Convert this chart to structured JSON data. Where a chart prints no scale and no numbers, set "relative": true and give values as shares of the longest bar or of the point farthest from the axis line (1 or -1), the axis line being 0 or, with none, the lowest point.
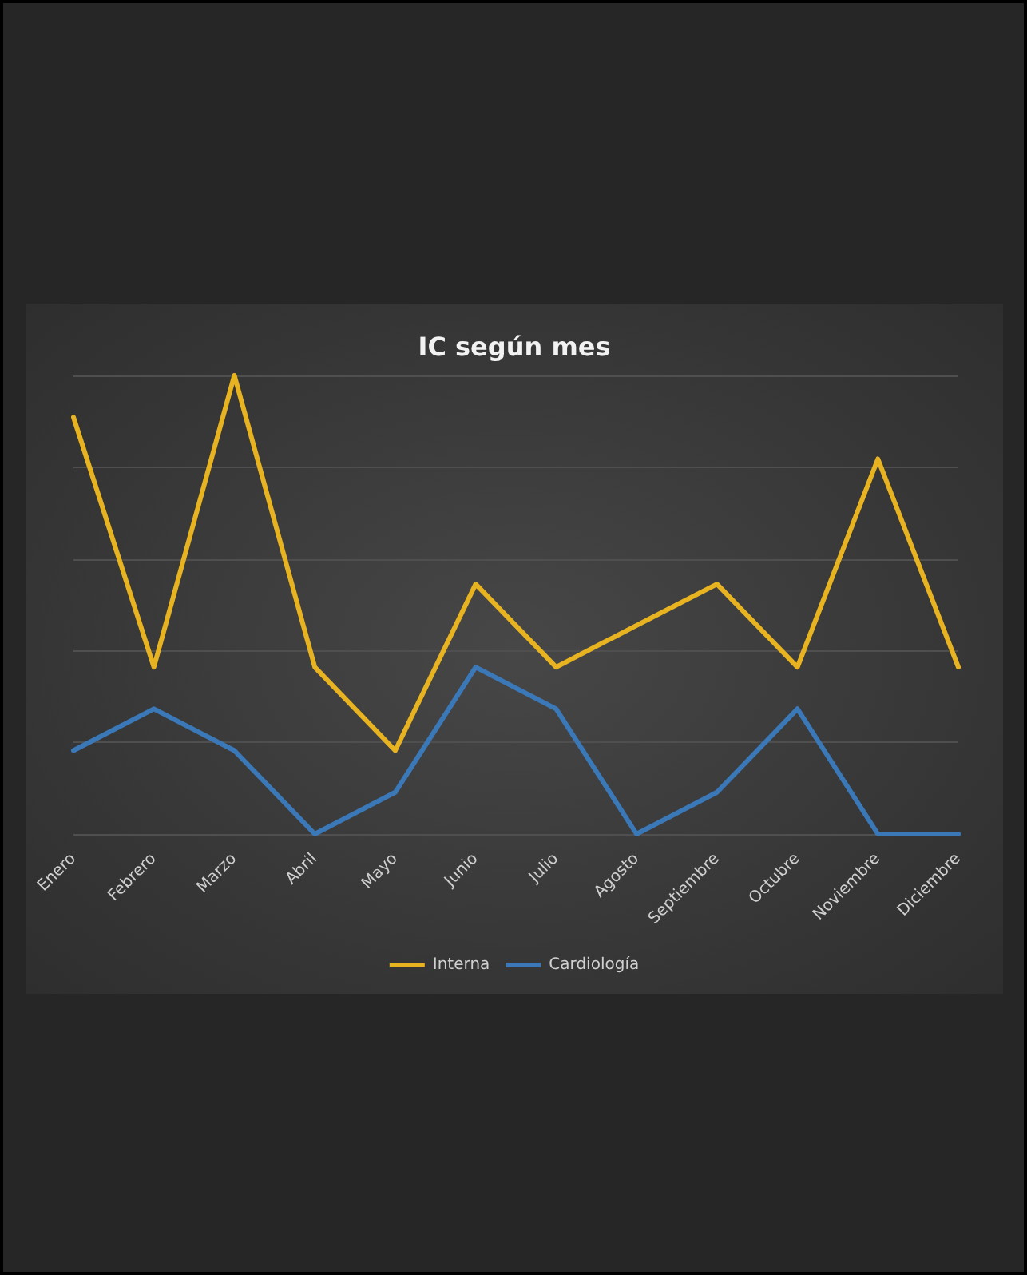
{
  "chart_data": {
    "type": "line",
    "title": "IC según mes",
    "relative": true,
    "categories": [
      "Enero",
      "Febrero",
      "Marzo",
      "Abril",
      "Mayo",
      "Junio",
      "Julio",
      "Agosto",
      "Septiembre",
      "Octubre",
      "Noviembre",
      "Diciembre"
    ],
    "series": [
      {
        "name": "Interna",
        "color": "#e8b321",
        "values": [
          0.909,
          0.364,
          1,
          0.364,
          0.182,
          0.545,
          0.364,
          0.455,
          0.545,
          0.364,
          0.818,
          0.364
        ]
      },
      {
        "name": "Cardiología",
        "color": "#3b78b8",
        "values": [
          0.182,
          0.273,
          0.182,
          0,
          0.091,
          0.364,
          0.273,
          0,
          0.091,
          0.273,
          0,
          0
        ]
      }
    ],
    "grid": "y",
    "legend": "bottom",
    "marker": "none",
    "line_style": "solid"
  }
}
